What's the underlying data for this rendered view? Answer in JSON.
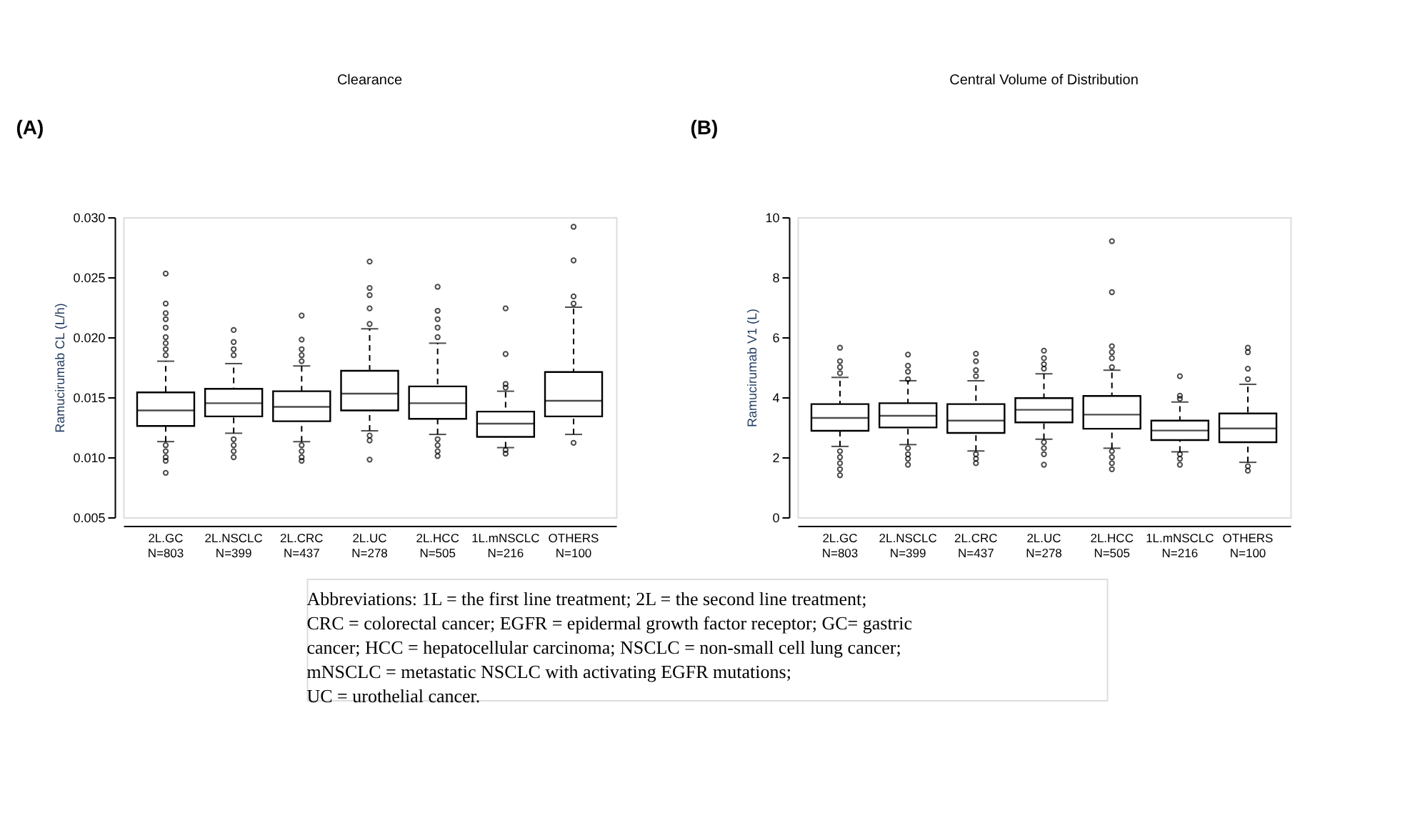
{
  "chart_data": [
    {
      "type": "box",
      "title": "Clearance",
      "ylabel": "Ramucirumab CL (L/h)",
      "annotations": [
        "(A)"
      ],
      "categories": [
        "2L.GC\nN=803",
        "2L.NSCLC\nN=399",
        "2L.CRC\nN=437",
        "2L.UC\nN=278",
        "2L.HCC\nN=505",
        "1L.mNSCLC\nN=216",
        "OTHERS\nN=100"
      ],
      "ylim": [
        0.005,
        0.03
      ],
      "yticks": [
        0.005,
        {
          "value": 0.01,
          "label": "0.010"
        },
        0.015,
        {
          "value": 0.02,
          "label": "0.020"
        },
        0.025,
        {
          "value": 0.03,
          "label": "0.030"
        }
      ],
      "grid": false,
      "boxes": [
        {
          "low": 0.0113,
          "q1": 0.0126,
          "median": 0.0139,
          "q3": 0.0154,
          "high": 0.018,
          "outliers": [
            0.0253,
            0.0228,
            0.022,
            0.0215,
            0.0208,
            0.02,
            0.0195,
            0.019,
            0.0185,
            0.011,
            0.0105,
            0.01,
            0.0097,
            0.0087
          ]
        },
        {
          "low": 0.012,
          "q1": 0.0134,
          "median": 0.0145,
          "q3": 0.0157,
          "high": 0.0178,
          "outliers": [
            0.0206,
            0.0196,
            0.019,
            0.0185,
            0.0115,
            0.011,
            0.0105,
            0.01
          ]
        },
        {
          "low": 0.0113,
          "q1": 0.013,
          "median": 0.0142,
          "q3": 0.0155,
          "high": 0.0176,
          "outliers": [
            0.0218,
            0.0198,
            0.019,
            0.0185,
            0.018,
            0.011,
            0.0105,
            0.01,
            0.0097
          ]
        },
        {
          "low": 0.0122,
          "q1": 0.0139,
          "median": 0.0153,
          "q3": 0.0172,
          "high": 0.0207,
          "outliers": [
            0.0263,
            0.0241,
            0.0235,
            0.0224,
            0.0211,
            0.0118,
            0.0114,
            0.0098
          ]
        },
        {
          "low": 0.0119,
          "q1": 0.0132,
          "median": 0.0145,
          "q3": 0.0159,
          "high": 0.0195,
          "outliers": [
            0.0242,
            0.0222,
            0.0215,
            0.0208,
            0.02,
            0.0115,
            0.011,
            0.0105,
            0.0101
          ]
        },
        {
          "low": 0.0108,
          "q1": 0.0117,
          "median": 0.0128,
          "q3": 0.0138,
          "high": 0.0155,
          "outliers": [
            0.0224,
            0.0186,
            0.0161,
            0.0158,
            0.0106,
            0.0103
          ]
        },
        {
          "low": 0.0119,
          "q1": 0.0134,
          "median": 0.0147,
          "q3": 0.0171,
          "high": 0.0225,
          "outliers": [
            0.0292,
            0.0264,
            0.0234,
            0.0228,
            0.0112
          ]
        }
      ]
    },
    {
      "type": "box",
      "title": "Central Volume of Distribution",
      "ylabel": "Ramucirumab V1 (L)",
      "annotations": [
        "(B)",
        "Abbreviations:  1L = the first line treatment; 2L = the second line treatment;",
        "CRC = colorectal cancer; EGFR = epidermal growth factor receptor; GC= gastric",
        "cancer; HCC = hepatocellular carcinoma; NSCLC = non-small cell lung cancer;",
        "mNSCLC = metastatic NSCLC with activating EGFR mutations;",
        "UC = urothelial cancer."
      ],
      "categories": [
        "2L.GC\nN=803",
        "2L.NSCLC\nN=399",
        "2L.CRC\nN=437",
        "2L.UC\nN=278",
        "2L.HCC\nN=505",
        "1L.mNSCLC\nN=216",
        "OTHERS\nN=100"
      ],
      "ylim": [
        0,
        10
      ],
      "yticks": [
        0,
        2,
        4,
        6,
        8,
        10
      ],
      "grid": false,
      "boxes": [
        {
          "low": 2.36,
          "q1": 2.88,
          "median": 3.31,
          "q3": 3.77,
          "high": 4.66,
          "outliers": [
            5.65,
            5.2,
            5.0,
            4.8,
            2.2,
            2.0,
            1.8,
            1.6,
            1.4
          ]
        },
        {
          "low": 2.42,
          "q1": 2.99,
          "median": 3.38,
          "q3": 3.8,
          "high": 4.55,
          "outliers": [
            5.42,
            5.05,
            4.85,
            4.6,
            2.3,
            2.1,
            1.95,
            1.75
          ]
        },
        {
          "low": 2.21,
          "q1": 2.81,
          "median": 3.22,
          "q3": 3.77,
          "high": 4.55,
          "outliers": [
            5.45,
            5.2,
            4.9,
            4.7,
            2.1,
            1.95,
            1.8
          ]
        },
        {
          "low": 2.6,
          "q1": 3.16,
          "median": 3.58,
          "q3": 3.97,
          "high": 4.78,
          "outliers": [
            5.55,
            5.3,
            5.1,
            4.95,
            2.5,
            2.3,
            2.1,
            1.75
          ]
        },
        {
          "low": 2.3,
          "q1": 2.95,
          "median": 3.42,
          "q3": 4.04,
          "high": 4.9,
          "outliers": [
            9.2,
            7.5,
            5.7,
            5.5,
            5.3,
            5.0,
            2.2,
            2.0,
            1.8,
            1.6
          ]
        },
        {
          "low": 2.18,
          "q1": 2.57,
          "median": 2.89,
          "q3": 3.22,
          "high": 3.84,
          "outliers": [
            4.7,
            4.05,
            3.95,
            2.1,
            1.95,
            1.75
          ]
        },
        {
          "low": 1.83,
          "q1": 2.5,
          "median": 2.96,
          "q3": 3.46,
          "high": 4.43,
          "outliers": [
            5.65,
            5.5,
            4.95,
            4.6,
            1.7,
            1.55
          ]
        }
      ]
    }
  ]
}
